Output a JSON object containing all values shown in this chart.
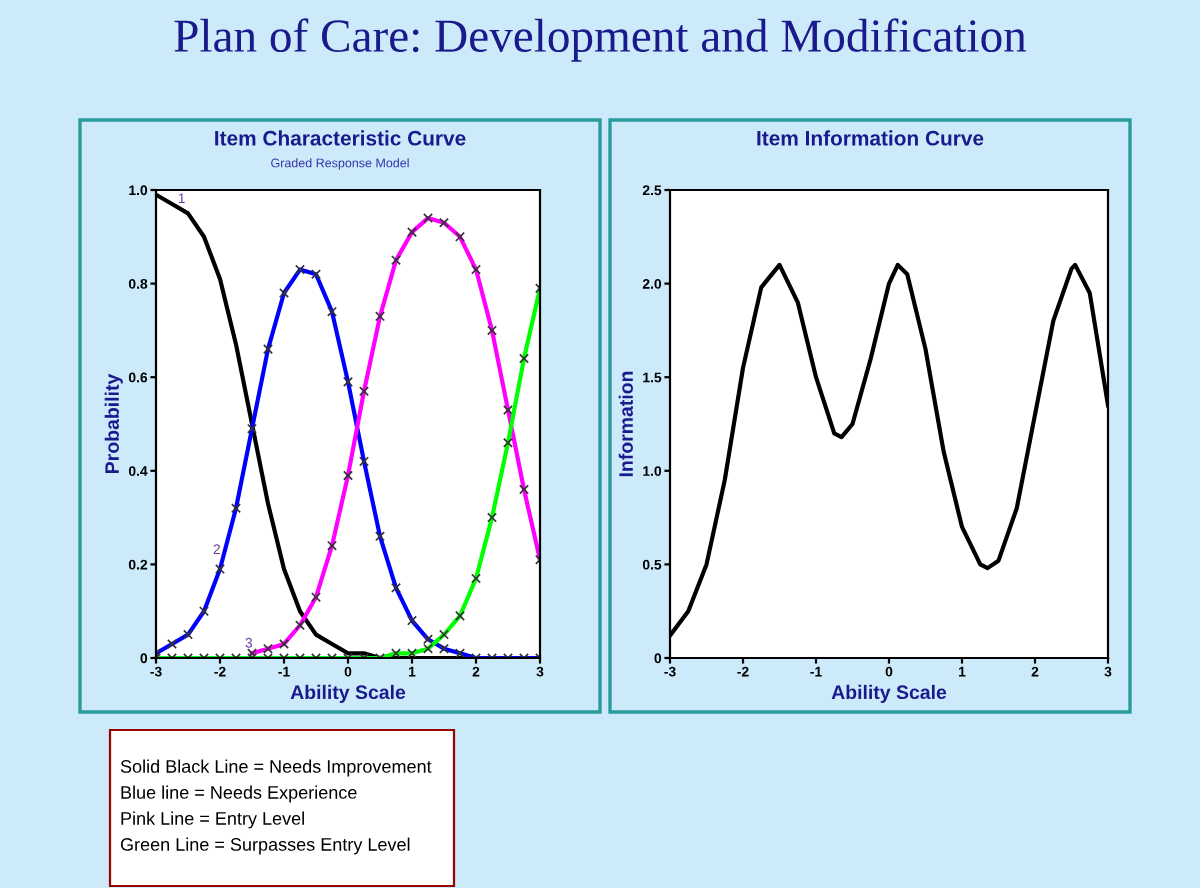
{
  "chart_data": [
    {
      "type": "line",
      "title": "Item Characteristic Curve",
      "subtitle": "Graded Response Model",
      "xlabel": "Ability Scale",
      "ylabel": "Probability",
      "x": [
        -3,
        -2.75,
        -2.5,
        -2.25,
        -2,
        -1.75,
        -1.5,
        -1.25,
        -1,
        -0.75,
        -0.5,
        -0.25,
        0,
        0.25,
        0.5,
        0.75,
        1,
        1.25,
        1.5,
        1.75,
        2,
        2.25,
        2.5,
        2.75,
        3
      ],
      "series": [
        {
          "color": "#000000",
          "marker": "none",
          "values": [
            0.99,
            0.97,
            0.95,
            0.9,
            0.81,
            0.67,
            0.5,
            0.33,
            0.19,
            0.1,
            0.05,
            0.03,
            0.01,
            0.01,
            0,
            0,
            0,
            0,
            0,
            0,
            0,
            0,
            0,
            0,
            0
          ]
        },
        {
          "color": "#0000ff",
          "marker": "cross",
          "values": [
            0.01,
            0.03,
            0.05,
            0.1,
            0.19,
            0.32,
            0.49,
            0.66,
            0.78,
            0.83,
            0.82,
            0.74,
            0.59,
            0.42,
            0.26,
            0.15,
            0.08,
            0.04,
            0.02,
            0.01,
            0,
            0,
            0,
            0,
            0
          ]
        },
        {
          "color": "#ff00ff",
          "marker": "cross",
          "values": [
            null,
            null,
            null,
            null,
            null,
            null,
            0.01,
            0.02,
            0.03,
            0.07,
            0.13,
            0.24,
            0.39,
            0.57,
            0.73,
            0.85,
            0.91,
            0.94,
            0.93,
            0.9,
            0.83,
            0.7,
            0.53,
            0.36,
            0.21
          ]
        },
        {
          "color": "#00ff00",
          "marker": "cross",
          "values": [
            0,
            0,
            0,
            0,
            0,
            0,
            0,
            0,
            0,
            0,
            0,
            0,
            0,
            0,
            0,
            0.01,
            0.01,
            0.02,
            0.05,
            0.09,
            0.17,
            0.3,
            0.46,
            0.64,
            0.79
          ]
        }
      ],
      "xlim": [
        -3,
        3
      ],
      "ylim": [
        0,
        1
      ],
      "xticks": [
        -3,
        -2,
        -1,
        0,
        1,
        2,
        3
      ],
      "yticks": [
        0,
        {
          "value": 0.2,
          "label": "0.2"
        },
        {
          "value": 0.4,
          "label": "0.4"
        },
        {
          "value": 0.6,
          "label": "0.6"
        },
        {
          "value": 0.8,
          "label": "0.8"
        },
        {
          "value": 1,
          "label": "1.0"
        }
      ],
      "annotations": [
        {
          "text": "1",
          "x": -2.6,
          "y": 0.98
        },
        {
          "text": "2",
          "x": -2.05,
          "y": 0.23
        },
        {
          "text": "3",
          "x": -1.55,
          "y": 0.03
        },
        "Plan of Care: Development and Modification",
        "Solid Black Line = Needs Improvement",
        "Blue line = Needs Experience",
        "Pink Line = Entry Level",
        "Green Line = Surpasses Entry Level"
      ]
    },
    {
      "type": "line",
      "title": "Item Information Curve",
      "xlabel": "Ability Scale",
      "ylabel": "Information",
      "x": [
        -3,
        -2.75,
        -2.5,
        -2.25,
        -2,
        -1.75,
        -1.5,
        -1.25,
        -1,
        -0.75,
        -0.65,
        -0.5,
        -0.25,
        0,
        0.12,
        0.25,
        0.5,
        0.75,
        1,
        1.25,
        1.35,
        1.5,
        1.75,
        2,
        2.25,
        2.5,
        2.55,
        2.75,
        3
      ],
      "series": [
        {
          "color": "#000000",
          "marker": "none",
          "values": [
            0.12,
            0.25,
            0.5,
            0.95,
            1.55,
            1.98,
            2.1,
            1.9,
            1.5,
            1.2,
            1.18,
            1.25,
            1.6,
            2.0,
            2.1,
            2.05,
            1.65,
            1.1,
            0.7,
            0.5,
            0.48,
            0.52,
            0.8,
            1.3,
            1.8,
            2.08,
            2.1,
            1.95,
            1.35
          ]
        }
      ],
      "xlim": [
        -3,
        3
      ],
      "ylim": [
        0,
        2.5
      ],
      "xticks": [
        -3,
        -2,
        -1,
        0,
        1,
        2,
        3
      ],
      "yticks": [
        0,
        {
          "value": 0.5,
          "label": "0.5"
        },
        {
          "value": 1,
          "label": "1.0"
        },
        {
          "value": 1.5,
          "label": "1.5"
        },
        {
          "value": 2,
          "label": "2.0"
        },
        {
          "value": 2.5,
          "label": "2.5"
        }
      ]
    }
  ]
}
